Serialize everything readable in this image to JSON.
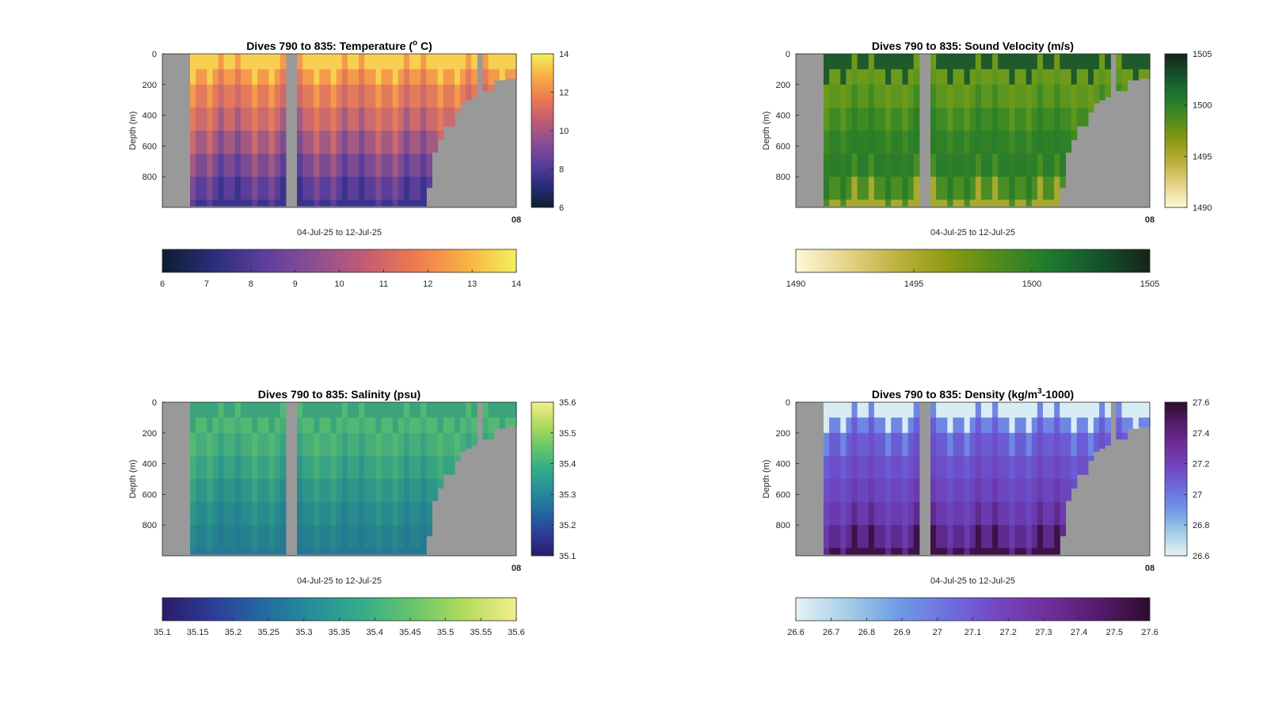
{
  "figure": {
    "panels": [
      {
        "id": "temperature",
        "title_main": "Dives 790 to 835: Temperature (",
        "title_sup": "o",
        "title_tail": " C)",
        "xlabel": "04-Jul-25 to 12-Jul-25",
        "ylabel": "Depth (m)",
        "corner_tick": "08",
        "colormap": [
          "#0b1e2e",
          "#2a2d7a",
          "#5b3f9c",
          "#8b4f93",
          "#c25c73",
          "#ee7a4f",
          "#f9b044",
          "#f2f05a"
        ],
        "profile_colors": [
          "#f7cf52",
          "#f59a4a",
          "#e47a5c",
          "#cc6a6c",
          "#a25a82",
          "#7c4b92",
          "#5b3e9a",
          "#3a338e"
        ],
        "bg": "#999999"
      },
      {
        "id": "sound-velocity",
        "title_main": "Dives 790 to 835: Sound Velocity (m/s)",
        "title_sup": "",
        "title_tail": "",
        "xlabel": "04-Jul-25 to 12-Jul-25",
        "ylabel": "Depth (m)",
        "corner_tick": "08",
        "colormap": [
          "#fdf8d8",
          "#e6d48a",
          "#bdb23e",
          "#8e9a14",
          "#4f8c1c",
          "#1f7a2e",
          "#14532c",
          "#142418"
        ],
        "profile_colors": [
          "#1f5a2a",
          "#6e9a1c",
          "#5d961e",
          "#3f8a24",
          "#2f8027",
          "#2a7d2a",
          "#4a8d22",
          "#a8aa2e"
        ],
        "bg": "#999999"
      },
      {
        "id": "salinity",
        "title_main": "Dives 790 to 835: Salinity (psu)",
        "title_sup": "",
        "title_tail": "",
        "xlabel": "04-Jul-25 to 12-Jul-25",
        "ylabel": "Depth (m)",
        "corner_tick": "08",
        "colormap": [
          "#2a1b68",
          "#2d3d9a",
          "#236aa0",
          "#268f99",
          "#36ae88",
          "#6ac66a",
          "#b3dc5c",
          "#f3ee8e"
        ],
        "profile_colors": [
          "#3aa57c",
          "#53b972",
          "#47ad7a",
          "#38a382",
          "#2d9688",
          "#288a8d",
          "#25808f",
          "#257893"
        ],
        "bg": "#999999"
      },
      {
        "id": "density",
        "title_main": "Dives 790 to 835: Density (kg/m",
        "title_sup": "3",
        "title_tail": "-1000)",
        "xlabel": "04-Jul-25 to 12-Jul-25",
        "ylabel": "Depth (m)",
        "corner_tick": "08",
        "colormap": [
          "#e6f2f5",
          "#a6cfe6",
          "#6f9de6",
          "#6d6fe0",
          "#7446c2",
          "#6f2f9a",
          "#561b6c",
          "#2e0c2c"
        ],
        "profile_colors": [
          "#d8ecf6",
          "#6e86e4",
          "#6b5cd6",
          "#6c4fc8",
          "#6d45bc",
          "#6a3aae",
          "#5e2a8e",
          "#3d1248"
        ],
        "bg": "#999999"
      }
    ]
  },
  "chart_data": [
    {
      "type": "heatmap",
      "title": "Dives 790 to 835: Temperature (° C)",
      "xlabel": "04-Jul-25 to 12-Jul-25",
      "ylabel": "Depth (m)",
      "ylim": [
        1000,
        0
      ],
      "yticks": [
        0,
        200,
        400,
        600,
        800
      ],
      "colorbar_right": {
        "ticks": [
          6,
          8,
          10,
          12,
          14
        ],
        "range": [
          6,
          14
        ]
      },
      "colorbar_bottom": {
        "ticks": [
          6,
          7,
          8,
          9,
          10,
          11,
          12,
          13,
          14
        ],
        "range": [
          6,
          14
        ]
      },
      "profile_depths_m": [
        0,
        100,
        200,
        350,
        500,
        650,
        800,
        950
      ],
      "profile_values": [
        14,
        12.2,
        11.4,
        10.6,
        9.7,
        8.9,
        8.2,
        7.5
      ]
    },
    {
      "type": "heatmap",
      "title": "Dives 790 to 835: Sound Velocity (m/s)",
      "xlabel": "04-Jul-25 to 12-Jul-25",
      "ylabel": "Depth (m)",
      "ylim": [
        1000,
        0
      ],
      "yticks": [
        0,
        200,
        400,
        600,
        800
      ],
      "colorbar_right": {
        "ticks": [
          1490,
          1495,
          1500,
          1505
        ],
        "range": [
          1490,
          1505
        ]
      },
      "colorbar_bottom": {
        "ticks": [
          1490,
          1495,
          1500,
          1505
        ],
        "range": [
          1490,
          1505
        ]
      },
      "profile_depths_m": [
        0,
        100,
        200,
        350,
        500,
        650,
        800,
        950
      ],
      "profile_values": [
        1503,
        1497.5,
        1497.8,
        1498.8,
        1499.4,
        1499.6,
        1498.5,
        1496.5
      ]
    },
    {
      "type": "heatmap",
      "title": "Dives 790 to 835: Salinity (psu)",
      "xlabel": "04-Jul-25 to 12-Jul-25",
      "ylabel": "Depth (m)",
      "ylim": [
        1000,
        0
      ],
      "yticks": [
        0,
        200,
        400,
        600,
        800
      ],
      "colorbar_right": {
        "ticks": [
          35.1,
          35.2,
          35.3,
          35.4,
          35.5,
          35.6
        ],
        "range": [
          35.1,
          35.6
        ]
      },
      "colorbar_bottom": {
        "ticks": [
          "35.1",
          "35.15",
          "35.2",
          "35.25",
          "35.3",
          "35.35",
          "35.4",
          "35.45",
          "35.5",
          "35.55",
          "35.6"
        ],
        "range": [
          35.1,
          35.6
        ]
      },
      "profile_depths_m": [
        0,
        100,
        200,
        350,
        500,
        650,
        800,
        950
      ],
      "profile_values": [
        35.42,
        35.46,
        35.42,
        35.38,
        35.34,
        35.3,
        35.27,
        35.24
      ]
    },
    {
      "type": "heatmap",
      "title": "Dives 790 to 835: Density (kg/m³-1000)",
      "xlabel": "04-Jul-25 to 12-Jul-25",
      "ylabel": "Depth (m)",
      "ylim": [
        1000,
        0
      ],
      "yticks": [
        0,
        200,
        400,
        600,
        800
      ],
      "colorbar_right": {
        "ticks": [
          "26.6",
          "26.8",
          "27",
          "27.2",
          "27.4",
          "27.6"
        ],
        "range": [
          26.6,
          27.6
        ]
      },
      "colorbar_bottom": {
        "ticks": [
          "26.6",
          "26.7",
          "26.8",
          "26.9",
          "27",
          "27.1",
          "27.2",
          "27.3",
          "27.4",
          "27.5",
          "27.6"
        ],
        "range": [
          26.6,
          27.6
        ]
      },
      "profile_depths_m": [
        0,
        100,
        200,
        350,
        500,
        650,
        800,
        950
      ],
      "profile_values": [
        26.65,
        27.05,
        27.12,
        27.18,
        27.22,
        27.27,
        27.35,
        27.5
      ]
    }
  ]
}
